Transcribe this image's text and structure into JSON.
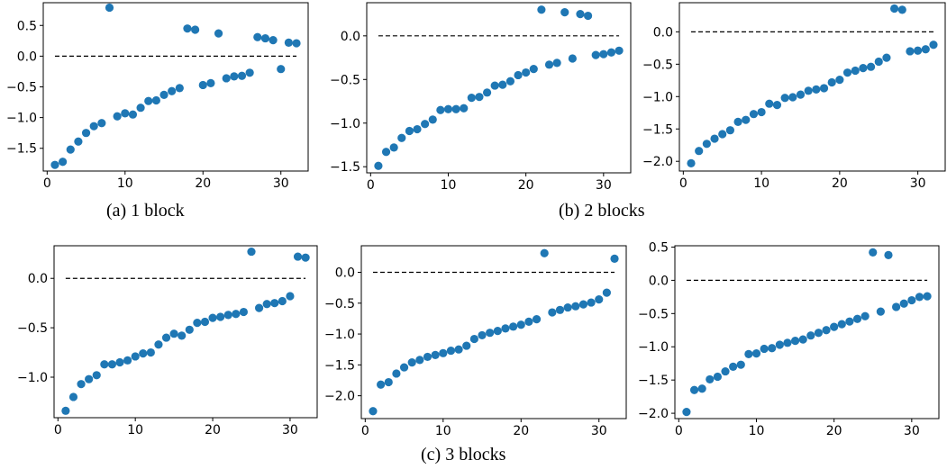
{
  "captions": {
    "a": "(a)  1 block",
    "b": "(b)  2 blocks",
    "c": "(c)  3 blocks"
  },
  "style": {
    "marker_color": "#1f77b4",
    "reference_line_color": "#000000"
  },
  "chart_data": [
    {
      "type": "scatter",
      "panel": "1 block",
      "x": [
        1,
        2,
        3,
        4,
        5,
        6,
        7,
        8,
        9,
        10,
        11,
        12,
        13,
        14,
        15,
        16,
        17,
        18,
        19,
        20,
        21,
        22,
        23,
        24,
        25,
        26,
        27,
        28,
        29,
        30,
        31,
        32
      ],
      "y": [
        -1.77,
        -1.72,
        -1.52,
        -1.39,
        -1.25,
        -1.14,
        -1.09,
        0.79,
        -0.98,
        -0.93,
        -0.95,
        -0.84,
        -0.73,
        -0.72,
        -0.63,
        -0.57,
        -0.52,
        0.45,
        0.43,
        -0.47,
        -0.44,
        0.37,
        -0.36,
        -0.33,
        -0.32,
        -0.27,
        0.31,
        0.29,
        0.26,
        -0.21,
        0.22,
        0.21
      ],
      "reference_line": 0.0,
      "xlim": [
        -0.5,
        33.5
      ],
      "ylim": [
        -1.87,
        0.87
      ],
      "xticks": [
        0,
        10,
        20,
        30
      ],
      "yticks": [
        -1.5,
        -1.0,
        -0.5,
        0.0,
        0.5
      ],
      "ytick_labels": [
        "−1.5",
        "−1.0",
        "−0.5",
        "0.0",
        "0.5"
      ]
    },
    {
      "type": "scatter",
      "panel": "2 blocks (left)",
      "x": [
        1,
        2,
        3,
        4,
        5,
        6,
        7,
        8,
        9,
        10,
        11,
        12,
        13,
        14,
        15,
        16,
        17,
        18,
        19,
        20,
        21,
        22,
        23,
        24,
        25,
        26,
        27,
        28,
        29,
        30,
        31,
        32
      ],
      "y": [
        -1.49,
        -1.33,
        -1.28,
        -1.17,
        -1.09,
        -1.07,
        -1.01,
        -0.96,
        -0.85,
        -0.84,
        -0.84,
        -0.83,
        -0.71,
        -0.7,
        -0.65,
        -0.57,
        -0.56,
        -0.52,
        -0.45,
        -0.42,
        -0.38,
        0.3,
        -0.33,
        -0.31,
        0.27,
        -0.26,
        0.25,
        0.23,
        -0.22,
        -0.21,
        -0.19,
        -0.17
      ],
      "reference_line": 0.0,
      "xlim": [
        -0.5,
        33.5
      ],
      "ylim": [
        -1.57,
        0.38
      ],
      "xticks": [
        0,
        10,
        20,
        30
      ],
      "yticks": [
        -1.5,
        -1.0,
        -0.5,
        0.0
      ],
      "ytick_labels": [
        "−1.5",
        "−1.0",
        "−0.5",
        "0.0"
      ]
    },
    {
      "type": "scatter",
      "panel": "2 blocks (right)",
      "x": [
        1,
        2,
        3,
        4,
        5,
        6,
        7,
        8,
        9,
        10,
        11,
        12,
        13,
        14,
        15,
        16,
        17,
        18,
        19,
        20,
        21,
        22,
        23,
        24,
        25,
        26,
        27,
        28,
        29,
        30,
        31,
        32
      ],
      "y": [
        -2.03,
        -1.84,
        -1.73,
        -1.65,
        -1.58,
        -1.52,
        -1.39,
        -1.36,
        -1.27,
        -1.24,
        -1.11,
        -1.13,
        -1.02,
        -1.01,
        -0.97,
        -0.91,
        -0.89,
        -0.87,
        -0.78,
        -0.74,
        -0.63,
        -0.6,
        -0.56,
        -0.54,
        -0.46,
        -0.4,
        0.36,
        0.34,
        -0.3,
        -0.29,
        -0.27,
        -0.2
      ],
      "reference_line": 0.0,
      "xlim": [
        -0.5,
        33.5
      ],
      "ylim": [
        -2.15,
        0.45
      ],
      "xticks": [
        0,
        10,
        20,
        30
      ],
      "yticks": [
        -2.0,
        -1.5,
        -1.0,
        -0.5,
        0.0
      ],
      "ytick_labels": [
        "−2.0",
        "−1.5",
        "−1.0",
        "−0.5",
        "0.0"
      ]
    },
    {
      "type": "scatter",
      "panel": "3 blocks (left)",
      "x": [
        1,
        2,
        3,
        4,
        5,
        6,
        7,
        8,
        9,
        10,
        11,
        12,
        13,
        14,
        15,
        16,
        17,
        18,
        19,
        20,
        21,
        22,
        23,
        24,
        25,
        26,
        27,
        28,
        29,
        30,
        31,
        32
      ],
      "y": [
        -1.34,
        -1.2,
        -1.07,
        -1.02,
        -0.98,
        -0.87,
        -0.87,
        -0.85,
        -0.83,
        -0.79,
        -0.76,
        -0.75,
        -0.67,
        -0.6,
        -0.56,
        -0.58,
        -0.52,
        -0.45,
        -0.44,
        -0.4,
        -0.39,
        -0.37,
        -0.36,
        -0.34,
        0.27,
        -0.3,
        -0.26,
        -0.25,
        -0.23,
        -0.18,
        0.22,
        0.21
      ],
      "reference_line": 0.0,
      "xlim": [
        -0.5,
        33.5
      ],
      "ylim": [
        -1.41,
        0.33
      ],
      "xticks": [
        0,
        10,
        20,
        30
      ],
      "yticks": [
        -1.0,
        -0.5,
        0.0
      ],
      "ytick_labels": [
        "−1.0",
        "−0.5",
        "0.0"
      ]
    },
    {
      "type": "scatter",
      "panel": "3 blocks (middle)",
      "x": [
        1,
        2,
        3,
        4,
        5,
        6,
        7,
        8,
        9,
        10,
        11,
        12,
        13,
        14,
        15,
        16,
        17,
        18,
        19,
        20,
        21,
        22,
        23,
        24,
        25,
        26,
        27,
        28,
        29,
        30,
        31,
        32
      ],
      "y": [
        -2.25,
        -1.82,
        -1.78,
        -1.64,
        -1.54,
        -1.46,
        -1.42,
        -1.37,
        -1.34,
        -1.31,
        -1.27,
        -1.25,
        -1.19,
        -1.08,
        -1.02,
        -0.98,
        -0.95,
        -0.91,
        -0.88,
        -0.85,
        -0.8,
        -0.76,
        0.31,
        -0.65,
        -0.61,
        -0.57,
        -0.55,
        -0.52,
        -0.49,
        -0.44,
        -0.33,
        0.22
      ],
      "reference_line": 0.0,
      "xlim": [
        -0.5,
        33.5
      ],
      "ylim": [
        -2.37,
        0.43
      ],
      "xticks": [
        0,
        10,
        20,
        30
      ],
      "yticks": [
        -2.0,
        -1.5,
        -1.0,
        -0.5,
        0.0
      ],
      "ytick_labels": [
        "−2.0",
        "−1.5",
        "−1.0",
        "−0.5",
        "0.0"
      ]
    },
    {
      "type": "scatter",
      "panel": "3 blocks (right)",
      "x": [
        1,
        2,
        3,
        4,
        5,
        6,
        7,
        8,
        9,
        10,
        11,
        12,
        13,
        14,
        15,
        16,
        17,
        18,
        19,
        20,
        21,
        22,
        23,
        24,
        25,
        26,
        27,
        28,
        29,
        30,
        31,
        32
      ],
      "y": [
        -1.98,
        -1.65,
        -1.63,
        -1.49,
        -1.45,
        -1.37,
        -1.3,
        -1.27,
        -1.11,
        -1.1,
        -1.03,
        -1.02,
        -0.97,
        -0.94,
        -0.91,
        -0.89,
        -0.83,
        -0.79,
        -0.75,
        -0.7,
        -0.66,
        -0.62,
        -0.58,
        -0.54,
        0.42,
        -0.47,
        0.38,
        -0.4,
        -0.35,
        -0.3,
        -0.25,
        -0.24
      ],
      "reference_line": 0.0,
      "xlim": [
        -0.5,
        33.5
      ],
      "ylim": [
        -2.08,
        0.52
      ],
      "xticks": [
        0,
        10,
        20,
        30
      ],
      "yticks": [
        -2.0,
        -1.5,
        -1.0,
        -0.5,
        0.0,
        0.5
      ],
      "ytick_labels": [
        "−2.0",
        "−1.5",
        "−1.0",
        "−0.5",
        "0.0",
        "0.5"
      ]
    }
  ]
}
